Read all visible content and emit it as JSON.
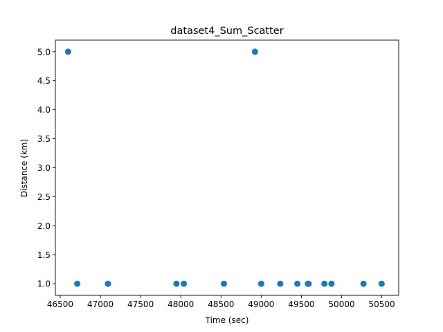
{
  "chart_data": {
    "type": "scatter",
    "title": "dataset4_Sum_Scatter",
    "xlabel": "Time (sec)",
    "ylabel": "Distance (km)",
    "xlim": [
      46440,
      50710
    ],
    "ylim": [
      0.8,
      5.2
    ],
    "xticks": [
      46500,
      47000,
      47500,
      48000,
      48500,
      49000,
      49500,
      50000,
      50500
    ],
    "yticks": [
      1.0,
      1.5,
      2.0,
      2.5,
      3.0,
      3.5,
      4.0,
      4.5,
      5.0
    ],
    "xtick_labels": [
      "46500",
      "47000",
      "47500",
      "48000",
      "48500",
      "49000",
      "49500",
      "50000",
      "50500"
    ],
    "ytick_labels": [
      "1.0",
      "1.5",
      "2.0",
      "2.5",
      "3.0",
      "3.5",
      "4.0",
      "4.5",
      "5.0"
    ],
    "grid": false,
    "color": "#1f77b4",
    "series": [
      {
        "x": [
          46598,
          46712,
          47094,
          47946,
          48038,
          48536,
          48922,
          49000,
          49237,
          49450,
          49580,
          49590,
          49786,
          49874,
          50272,
          50498
        ],
        "y": [
          5.0,
          1.0,
          1.0,
          1.0,
          1.0,
          1.0,
          5.0,
          1.0,
          1.0,
          1.0,
          1.0,
          1.0,
          1.0,
          1.0,
          1.0,
          1.0
        ]
      }
    ]
  }
}
